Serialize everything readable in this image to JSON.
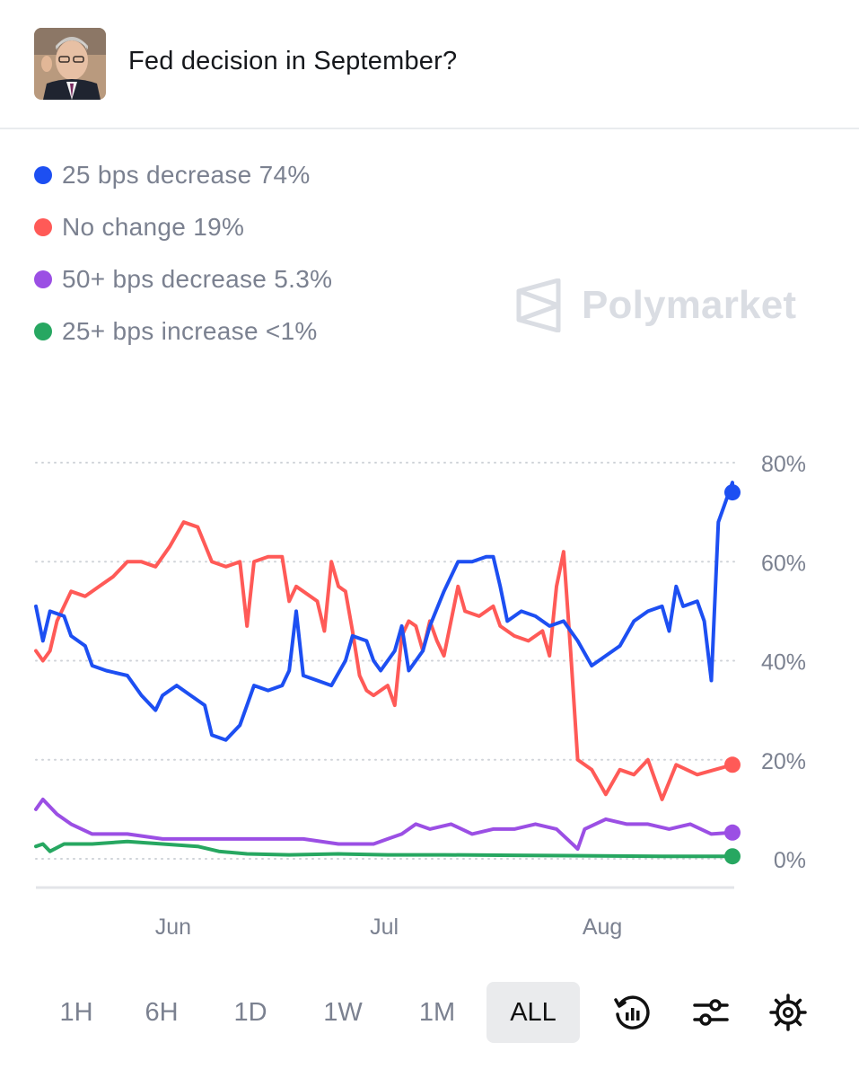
{
  "header": {
    "title": "Fed decision in September?"
  },
  "legend": [
    {
      "label": "25 bps decrease 74%",
      "color": "#1d4ff2"
    },
    {
      "label": "No change 19%",
      "color": "#ff5a57"
    },
    {
      "label": "50+ bps decrease 5.3%",
      "color": "#9b4fe4"
    },
    {
      "label": "25+ bps increase <1%",
      "color": "#27a761"
    }
  ],
  "watermark": {
    "text": "Polymarket"
  },
  "chart_data": {
    "type": "line",
    "ylim": [
      0,
      80
    ],
    "yticks": [
      "0%",
      "20%",
      "40%",
      "60%",
      "80%"
    ],
    "ytick_values": [
      0,
      20,
      40,
      60,
      80
    ],
    "xlim": [
      "2024-05-13",
      "2024-08-20"
    ],
    "xticks": [
      "Jun",
      "Jul",
      "Aug"
    ],
    "xtick_dates": [
      "2024-06-01",
      "2024-07-01",
      "2024-08-01"
    ],
    "grid": true,
    "series": [
      {
        "name": "25 bps decrease 74%",
        "color": "#1d4ff2",
        "points": [
          [
            "2024-05-13",
            51
          ],
          [
            "2024-05-14",
            44
          ],
          [
            "2024-05-15",
            50
          ],
          [
            "2024-05-17",
            49
          ],
          [
            "2024-05-18",
            45
          ],
          [
            "2024-05-20",
            43
          ],
          [
            "2024-05-21",
            39
          ],
          [
            "2024-05-23",
            38
          ],
          [
            "2024-05-26",
            37
          ],
          [
            "2024-05-28",
            33
          ],
          [
            "2024-05-30",
            30
          ],
          [
            "2024-05-31",
            33
          ],
          [
            "2024-06-02",
            35
          ],
          [
            "2024-06-04",
            33
          ],
          [
            "2024-06-06",
            31
          ],
          [
            "2024-06-07",
            25
          ],
          [
            "2024-06-09",
            24
          ],
          [
            "2024-06-11",
            27
          ],
          [
            "2024-06-12",
            31
          ],
          [
            "2024-06-13",
            35
          ],
          [
            "2024-06-15",
            34
          ],
          [
            "2024-06-17",
            35
          ],
          [
            "2024-06-18",
            38
          ],
          [
            "2024-06-19",
            50
          ],
          [
            "2024-06-20",
            37
          ],
          [
            "2024-06-22",
            36
          ],
          [
            "2024-06-24",
            35
          ],
          [
            "2024-06-26",
            40
          ],
          [
            "2024-06-27",
            45
          ],
          [
            "2024-06-29",
            44
          ],
          [
            "2024-06-30",
            40
          ],
          [
            "2024-07-01",
            38
          ],
          [
            "2024-07-03",
            42
          ],
          [
            "2024-07-04",
            47
          ],
          [
            "2024-07-05",
            38
          ],
          [
            "2024-07-06",
            40
          ],
          [
            "2024-07-07",
            42
          ],
          [
            "2024-07-08",
            47
          ],
          [
            "2024-07-10",
            54
          ],
          [
            "2024-07-12",
            60
          ],
          [
            "2024-07-14",
            60
          ],
          [
            "2024-07-16",
            61
          ],
          [
            "2024-07-17",
            61
          ],
          [
            "2024-07-18",
            55
          ],
          [
            "2024-07-19",
            48
          ],
          [
            "2024-07-21",
            50
          ],
          [
            "2024-07-23",
            49
          ],
          [
            "2024-07-25",
            47
          ],
          [
            "2024-07-27",
            48
          ],
          [
            "2024-07-29",
            44
          ],
          [
            "2024-07-31",
            39
          ],
          [
            "2024-08-02",
            41
          ],
          [
            "2024-08-04",
            43
          ],
          [
            "2024-08-06",
            48
          ],
          [
            "2024-08-08",
            50
          ],
          [
            "2024-08-10",
            51
          ],
          [
            "2024-08-11",
            46
          ],
          [
            "2024-08-12",
            55
          ],
          [
            "2024-08-13",
            51
          ],
          [
            "2024-08-15",
            52
          ],
          [
            "2024-08-16",
            48
          ],
          [
            "2024-08-17",
            36
          ],
          [
            "2024-08-18",
            68
          ],
          [
            "2024-08-19",
            72
          ],
          [
            "2024-08-20",
            76
          ],
          [
            "2024-08-20",
            74
          ]
        ]
      },
      {
        "name": "No change 19%",
        "color": "#ff5a57",
        "points": [
          [
            "2024-05-13",
            42
          ],
          [
            "2024-05-14",
            40
          ],
          [
            "2024-05-15",
            42
          ],
          [
            "2024-05-16",
            48
          ],
          [
            "2024-05-18",
            54
          ],
          [
            "2024-05-20",
            53
          ],
          [
            "2024-05-22",
            55
          ],
          [
            "2024-05-24",
            57
          ],
          [
            "2024-05-26",
            60
          ],
          [
            "2024-05-28",
            60
          ],
          [
            "2024-05-30",
            59
          ],
          [
            "2024-06-01",
            63
          ],
          [
            "2024-06-03",
            68
          ],
          [
            "2024-06-05",
            67
          ],
          [
            "2024-06-07",
            60
          ],
          [
            "2024-06-09",
            59
          ],
          [
            "2024-06-11",
            60
          ],
          [
            "2024-06-12",
            47
          ],
          [
            "2024-06-13",
            60
          ],
          [
            "2024-06-15",
            61
          ],
          [
            "2024-06-17",
            61
          ],
          [
            "2024-06-18",
            52
          ],
          [
            "2024-06-19",
            55
          ],
          [
            "2024-06-20",
            54
          ],
          [
            "2024-06-22",
            52
          ],
          [
            "2024-06-23",
            46
          ],
          [
            "2024-06-24",
            60
          ],
          [
            "2024-06-25",
            55
          ],
          [
            "2024-06-26",
            54
          ],
          [
            "2024-06-27",
            46
          ],
          [
            "2024-06-28",
            37
          ],
          [
            "2024-06-29",
            34
          ],
          [
            "2024-06-30",
            33
          ],
          [
            "2024-07-02",
            35
          ],
          [
            "2024-07-03",
            31
          ],
          [
            "2024-07-04",
            45
          ],
          [
            "2024-07-05",
            48
          ],
          [
            "2024-07-06",
            47
          ],
          [
            "2024-07-07",
            42
          ],
          [
            "2024-07-08",
            48
          ],
          [
            "2024-07-09",
            44
          ],
          [
            "2024-07-10",
            41
          ],
          [
            "2024-07-12",
            55
          ],
          [
            "2024-07-13",
            50
          ],
          [
            "2024-07-15",
            49
          ],
          [
            "2024-07-17",
            51
          ],
          [
            "2024-07-18",
            47
          ],
          [
            "2024-07-20",
            45
          ],
          [
            "2024-07-22",
            44
          ],
          [
            "2024-07-24",
            46
          ],
          [
            "2024-07-25",
            41
          ],
          [
            "2024-07-26",
            55
          ],
          [
            "2024-07-27",
            62
          ],
          [
            "2024-07-28",
            42
          ],
          [
            "2024-07-29",
            20
          ],
          [
            "2024-07-31",
            18
          ],
          [
            "2024-08-02",
            13
          ],
          [
            "2024-08-04",
            18
          ],
          [
            "2024-08-06",
            17
          ],
          [
            "2024-08-08",
            20
          ],
          [
            "2024-08-10",
            12
          ],
          [
            "2024-08-12",
            19
          ],
          [
            "2024-08-15",
            17
          ],
          [
            "2024-08-20",
            19
          ]
        ]
      },
      {
        "name": "50+ bps decrease 5.3%",
        "color": "#9b4fe4",
        "points": [
          [
            "2024-05-13",
            10
          ],
          [
            "2024-05-14",
            12
          ],
          [
            "2024-05-16",
            9
          ],
          [
            "2024-05-18",
            7
          ],
          [
            "2024-05-21",
            5
          ],
          [
            "2024-05-26",
            5
          ],
          [
            "2024-05-31",
            4
          ],
          [
            "2024-06-05",
            4
          ],
          [
            "2024-06-10",
            4
          ],
          [
            "2024-06-15",
            4
          ],
          [
            "2024-06-20",
            4
          ],
          [
            "2024-06-25",
            3
          ],
          [
            "2024-06-30",
            3
          ],
          [
            "2024-07-02",
            4
          ],
          [
            "2024-07-04",
            5
          ],
          [
            "2024-07-06",
            7
          ],
          [
            "2024-07-08",
            6
          ],
          [
            "2024-07-11",
            7
          ],
          [
            "2024-07-14",
            5
          ],
          [
            "2024-07-17",
            6
          ],
          [
            "2024-07-20",
            6
          ],
          [
            "2024-07-23",
            7
          ],
          [
            "2024-07-26",
            6
          ],
          [
            "2024-07-29",
            2
          ],
          [
            "2024-07-30",
            6
          ],
          [
            "2024-08-02",
            8
          ],
          [
            "2024-08-05",
            7
          ],
          [
            "2024-08-08",
            7
          ],
          [
            "2024-08-11",
            6
          ],
          [
            "2024-08-14",
            7
          ],
          [
            "2024-08-17",
            5
          ],
          [
            "2024-08-20",
            5.3
          ]
        ]
      },
      {
        "name": "25+ bps increase <1%",
        "color": "#27a761",
        "points": [
          [
            "2024-05-13",
            2.5
          ],
          [
            "2024-05-14",
            3
          ],
          [
            "2024-05-15",
            1.5
          ],
          [
            "2024-05-17",
            3
          ],
          [
            "2024-05-21",
            3
          ],
          [
            "2024-05-26",
            3.5
          ],
          [
            "2024-05-31",
            3
          ],
          [
            "2024-06-05",
            2.5
          ],
          [
            "2024-06-08",
            1.5
          ],
          [
            "2024-06-12",
            1
          ],
          [
            "2024-06-18",
            0.8
          ],
          [
            "2024-06-25",
            1
          ],
          [
            "2024-07-02",
            0.8
          ],
          [
            "2024-07-10",
            0.8
          ],
          [
            "2024-07-20",
            0.7
          ],
          [
            "2024-08-01",
            0.6
          ],
          [
            "2024-08-10",
            0.5
          ],
          [
            "2024-08-20",
            0.5
          ]
        ]
      }
    ]
  },
  "controls": {
    "ranges": [
      "1H",
      "6H",
      "1D",
      "1W",
      "1M",
      "ALL"
    ],
    "active": "ALL",
    "icons": [
      "history-chart-icon",
      "sliders-icon",
      "gear-icon"
    ]
  }
}
